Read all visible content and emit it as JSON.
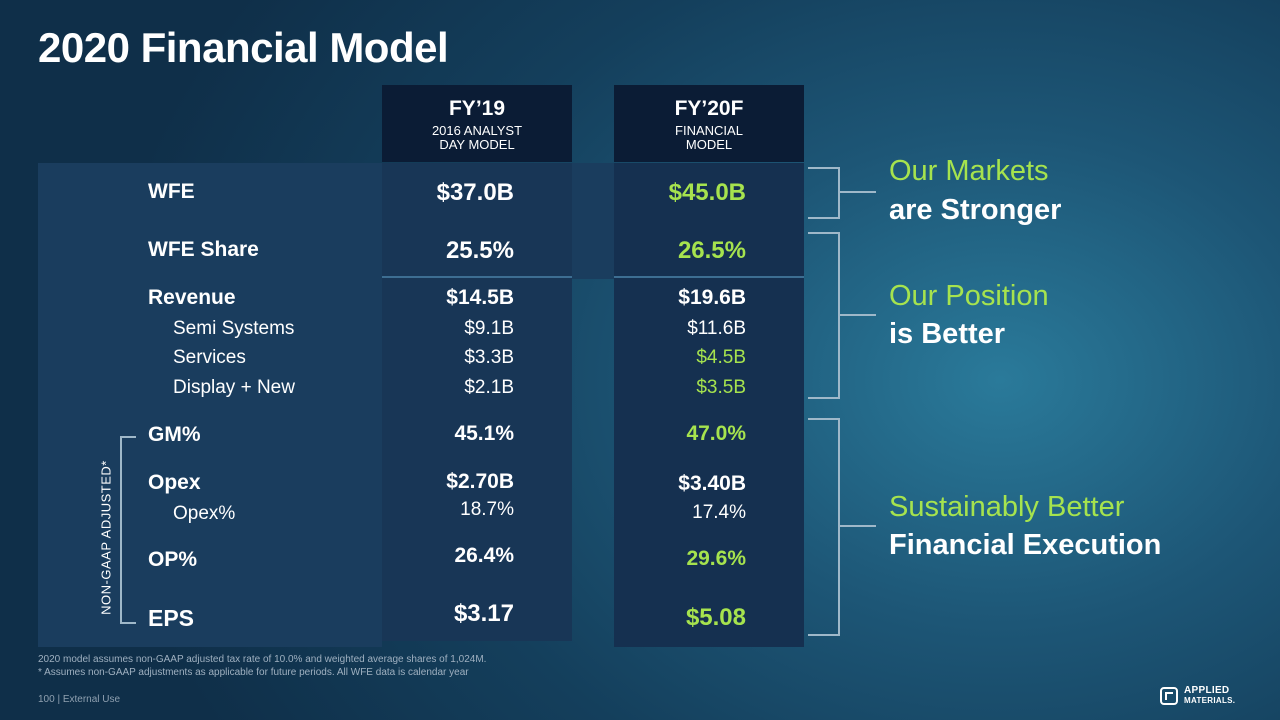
{
  "title": "2020 Financial Model",
  "columns": [
    {
      "header": "FY’19",
      "sub1": "2016 ANALYST",
      "sub2": "DAY MODEL"
    },
    {
      "header": "FY’20F",
      "sub1": "FINANCIAL",
      "sub2": "MODEL"
    }
  ],
  "rows": {
    "wfe": {
      "label": "WFE",
      "fy19": "$37.0B",
      "fy20": "$45.0B"
    },
    "wfe_share": {
      "label": "WFE Share",
      "fy19": "25.5%",
      "fy20": "26.5%"
    },
    "revenue": {
      "label": "Revenue",
      "fy19": "$14.5B",
      "fy20": "$19.6B"
    },
    "semi": {
      "label": "Semi Systems",
      "fy19": "$9.1B",
      "fy20": "$11.6B"
    },
    "services": {
      "label": "Services",
      "fy19": "$3.3B",
      "fy20": "$4.5B"
    },
    "display": {
      "label": "Display + New",
      "fy19": "$2.1B",
      "fy20": "$3.5B"
    },
    "gm": {
      "label": "GM%",
      "fy19": "45.1%",
      "fy20": "47.0%"
    },
    "opex": {
      "label": "Opex",
      "fy19": "$2.70B",
      "fy20": "$3.40B"
    },
    "opex_pct": {
      "label": "Opex%",
      "fy19": "18.7%",
      "fy20": "17.4%"
    },
    "op": {
      "label": "OP%",
      "fy19": "26.4%",
      "fy20": "29.6%"
    },
    "eps": {
      "label": "EPS",
      "fy19": "$3.17",
      "fy20": "$5.08"
    }
  },
  "non_gaap_label": "NON-GAAP ADJUSTED*",
  "callouts": [
    {
      "line1": "Our Markets",
      "line2": "are Stronger"
    },
    {
      "line1": "Our Position",
      "line2": "is Better"
    },
    {
      "line1": "Sustainably Better",
      "line2": "Financial Execution"
    }
  ],
  "footnotes": {
    "line1": "2020 model assumes non-GAAP adjusted  tax rate  of 10.0% and weighted average shares of 1,024M.",
    "line2": "* Assumes non-GAAP adjustments as applicable for future periods. All WFE data is calendar year"
  },
  "page_label": "100  |  External Use",
  "logo": {
    "line1": "APPLIED",
    "line2": "MATERIALS."
  },
  "colors": {
    "accent_green": "#a6e34e",
    "header_navy": "#0b1c35"
  }
}
